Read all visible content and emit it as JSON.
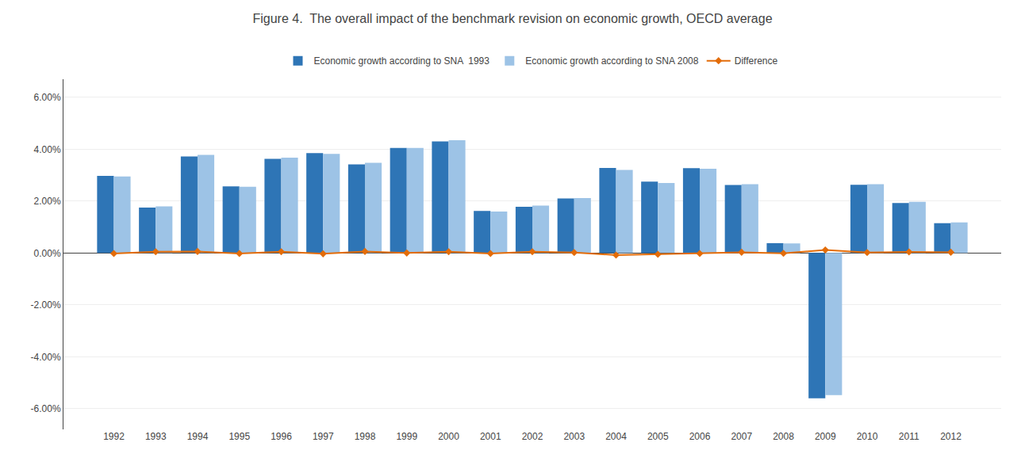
{
  "chart_data": {
    "type": "bar",
    "title": "Figure 4.  The overall impact of the benchmark revision on economic growth, OECD average",
    "categories": [
      "1992",
      "1993",
      "1994",
      "1995",
      "1996",
      "1997",
      "1998",
      "1999",
      "2000",
      "2001",
      "2002",
      "2003",
      "2004",
      "2005",
      "2006",
      "2007",
      "2008",
      "2009",
      "2010",
      "2011",
      "2012"
    ],
    "series": [
      {
        "name": "Economic growth according to SNA  1993",
        "type": "bar",
        "color": "#2E75B6",
        "values": [
          0.0297,
          0.0175,
          0.0372,
          0.0257,
          0.0363,
          0.0385,
          0.0342,
          0.0405,
          0.043,
          0.0162,
          0.0178,
          0.021,
          0.0328,
          0.0275,
          0.0327,
          0.0262,
          0.0038,
          -0.056,
          0.0263,
          0.0193,
          0.0115
        ]
      },
      {
        "name": "Economic growth according to SNA 2008",
        "type": "bar",
        "color": "#9DC3E6",
        "values": [
          0.0295,
          0.018,
          0.0378,
          0.0255,
          0.0368,
          0.0382,
          0.0348,
          0.0405,
          0.0435,
          0.016,
          0.0183,
          0.0212,
          0.032,
          0.027,
          0.0325,
          0.0265,
          0.0037,
          -0.0548,
          0.0265,
          0.0197,
          0.0118
        ]
      },
      {
        "name": "Difference",
        "type": "line",
        "color": "#E36C09",
        "marker": "diamond",
        "values": [
          -0.0002,
          0.0005,
          0.0006,
          -0.0002,
          0.0005,
          -0.0003,
          0.0006,
          0,
          0.0005,
          -0.0002,
          0.0005,
          0.0002,
          -0.0008,
          -0.0005,
          -0.0002,
          0.0003,
          -0.0001,
          0.0012,
          0.0002,
          0.0004,
          0.0003
        ]
      }
    ],
    "ylim": [
      -0.068,
      0.067
    ],
    "yticks": [
      {
        "value": -0.06,
        "label": "-6.00%"
      },
      {
        "value": -0.04,
        "label": "-4.00%"
      },
      {
        "value": -0.02,
        "label": "-2.00%"
      },
      {
        "value": 0,
        "label": "0.00%"
      },
      {
        "value": 0.02,
        "label": "2.00%"
      },
      {
        "value": 0.04,
        "label": "4.00%"
      },
      {
        "value": 0.06,
        "label": "6.00%"
      }
    ],
    "grid": true,
    "legend": "top"
  }
}
